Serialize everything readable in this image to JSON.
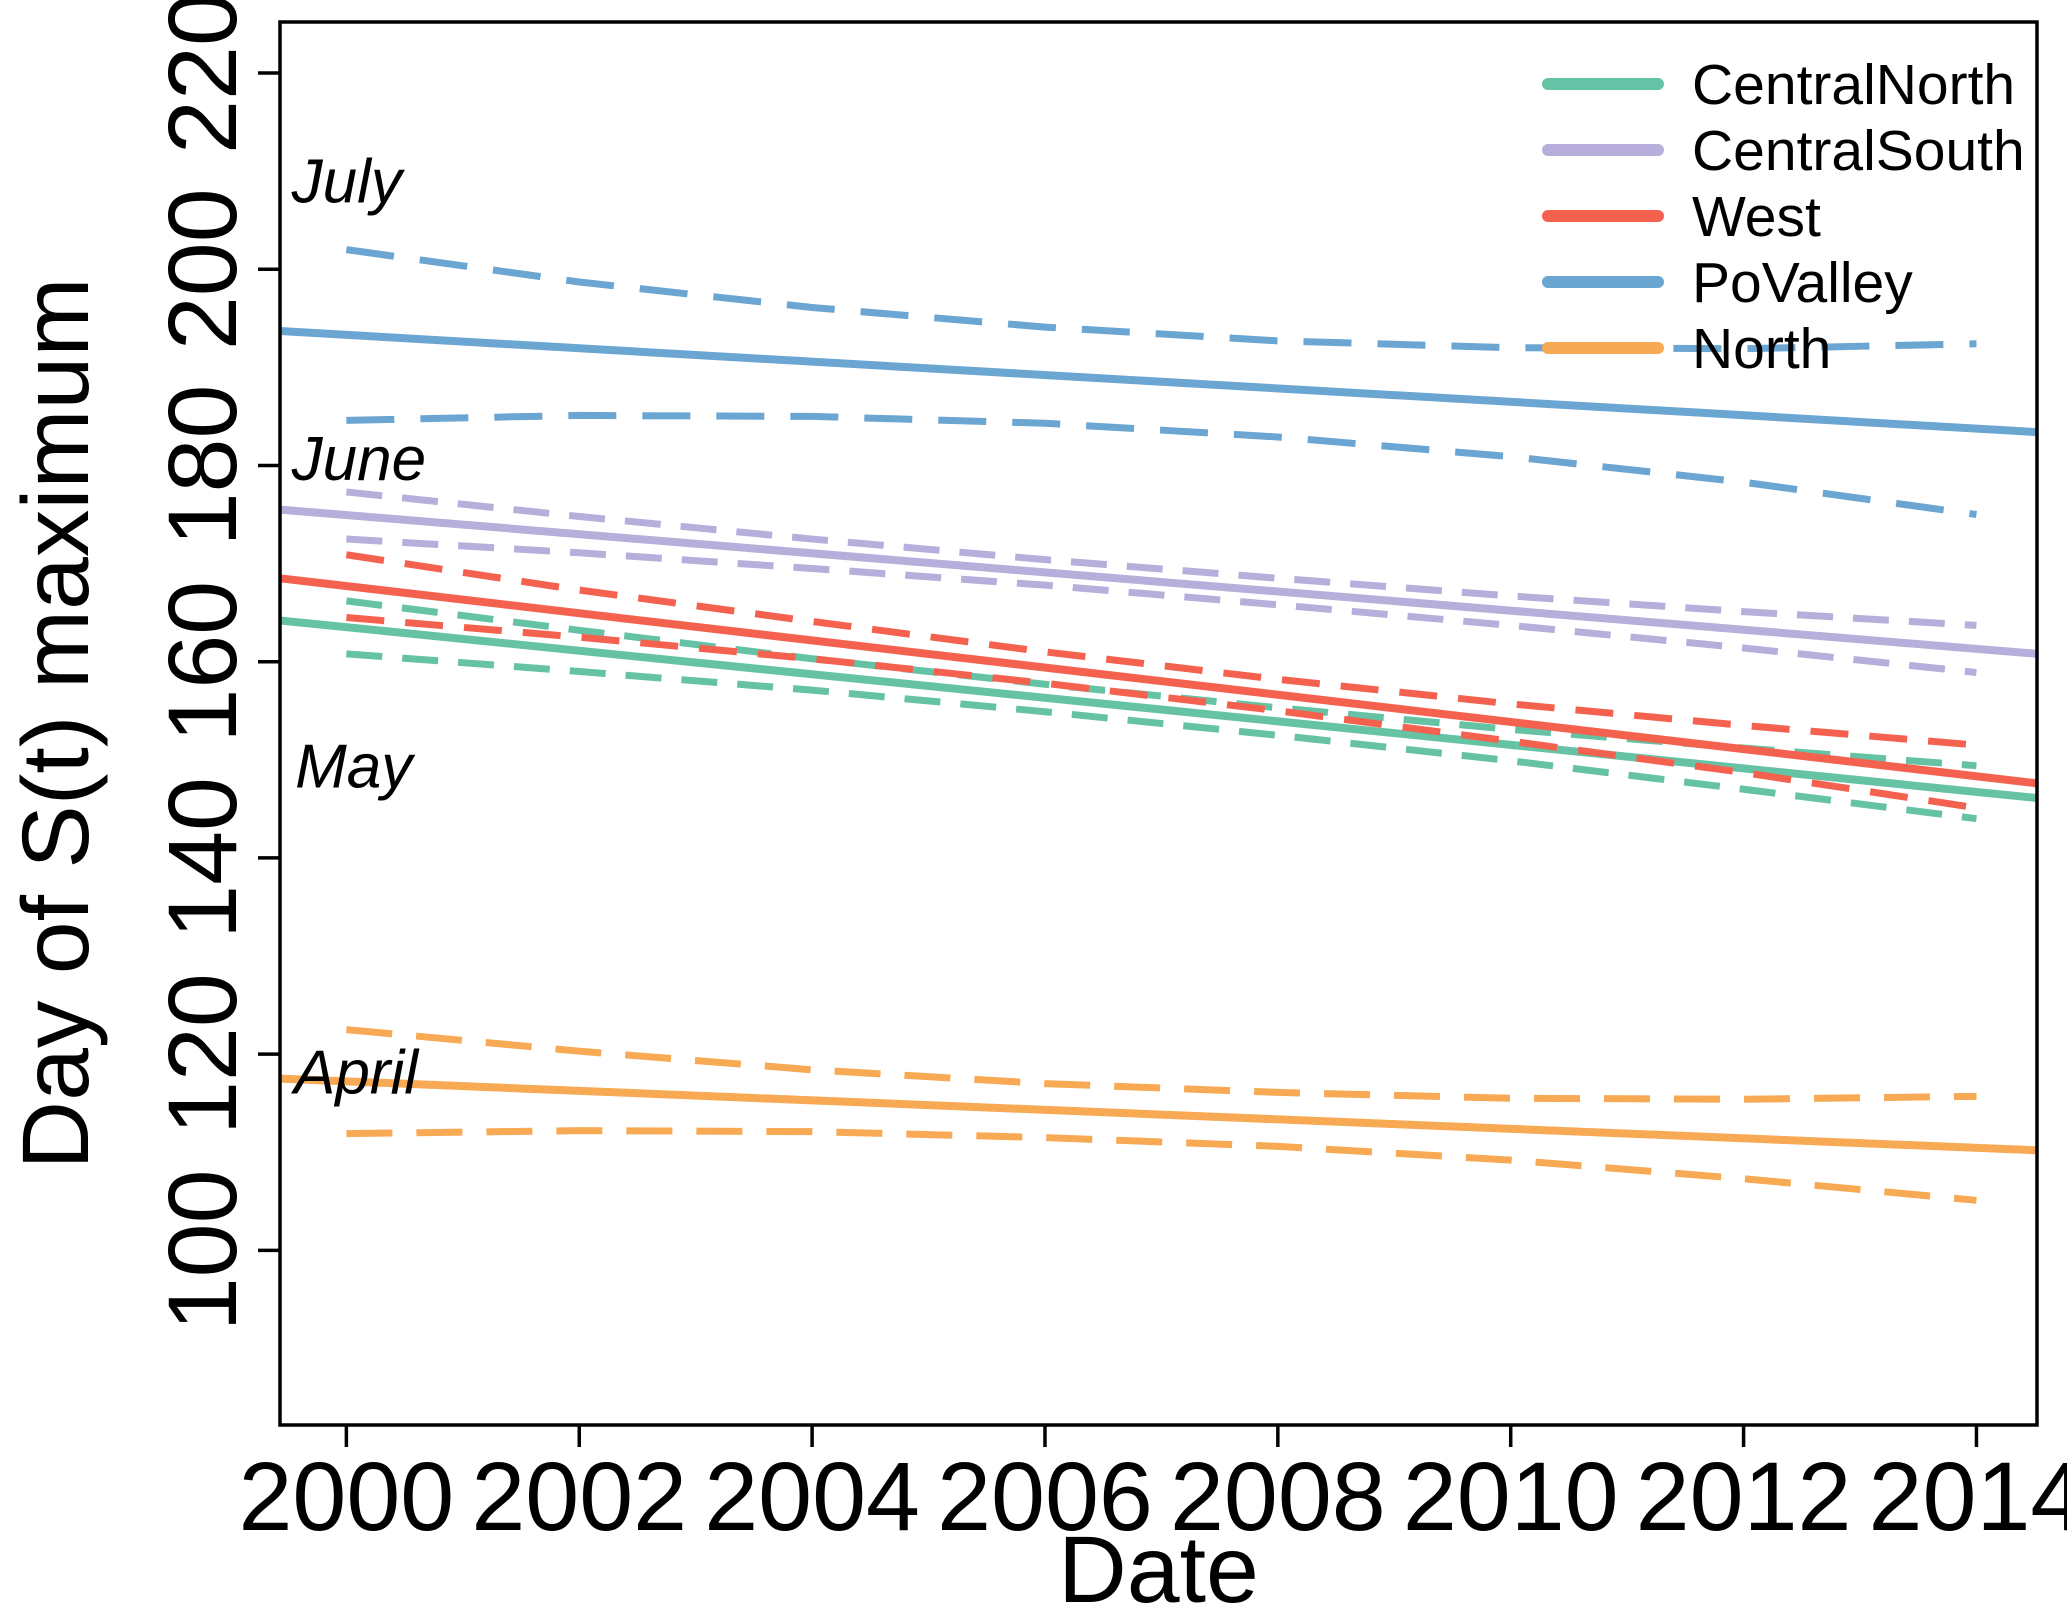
{
  "chart_data": {
    "type": "line",
    "title": "",
    "xlabel": "Date",
    "ylabel": "Day of S(t) maximum",
    "xlim": [
      1999.43,
      2014.52
    ],
    "ylim": [
      82.2,
      225.2
    ],
    "x_ticks": [
      2000,
      2002,
      2004,
      2006,
      2008,
      2010,
      2012,
      2014
    ],
    "y_ticks": [
      100,
      120,
      140,
      160,
      180,
      200,
      220
    ],
    "grid": false,
    "legend_position": "top-right",
    "axis_color": "#000000",
    "annotations": [
      {
        "label": "July",
        "x": 1999.53,
        "y": 206.8,
        "style": "italic"
      },
      {
        "label": "June",
        "x": 1999.53,
        "y": 178.5,
        "style": "italic"
      },
      {
        "label": "May",
        "x": 1999.56,
        "y": 147.2,
        "style": "italic"
      },
      {
        "label": "April",
        "x": 1999.55,
        "y": 116.0,
        "style": "italic"
      }
    ],
    "ci_years": [
      2000,
      2002,
      2004,
      2006,
      2008,
      2010,
      2012,
      2014
    ],
    "series": [
      {
        "name": "CentralNorth",
        "color": "#66C2A5",
        "trend_x": [
          1999.43,
          2014.52
        ],
        "trend_y": [
          164.2,
          146.1
        ],
        "ci_upper": [
          166.2,
          163.2,
          160.3,
          157.7,
          155.3,
          153.1,
          151.2,
          149.4
        ],
        "ci_lower": [
          160.8,
          159.0,
          157.1,
          154.9,
          152.5,
          149.9,
          147.0,
          144.0
        ],
        "dash": "36 20"
      },
      {
        "name": "CentralSouth",
        "color": "#B7AEDB",
        "trend_x": [
          1999.43,
          2014.52
        ],
        "trend_y": [
          175.5,
          160.8
        ],
        "ci_upper": [
          177.3,
          174.8,
          172.5,
          170.4,
          168.5,
          166.7,
          165.1,
          163.7
        ],
        "ci_lower": [
          172.5,
          171.1,
          169.5,
          167.8,
          165.8,
          163.7,
          161.4,
          158.9
        ],
        "dash": "36 20"
      },
      {
        "name": "West",
        "color": "#F4624F",
        "trend_x": [
          1999.43,
          2014.52
        ],
        "trend_y": [
          168.5,
          147.6
        ],
        "ci_upper": [
          170.9,
          167.3,
          164.1,
          161.0,
          158.2,
          155.7,
          153.5,
          151.5
        ],
        "ci_lower": [
          164.5,
          162.5,
          160.3,
          157.8,
          155.0,
          151.9,
          148.7,
          145.1
        ],
        "dash": "38 21"
      },
      {
        "name": "PoValley",
        "color": "#6BA5D2",
        "trend_x": [
          1999.43,
          2014.52
        ],
        "trend_y": [
          193.7,
          183.4
        ],
        "ci_upper": [
          202.0,
          198.7,
          196.1,
          194.1,
          192.7,
          192.0,
          191.9,
          192.4
        ],
        "ci_lower": [
          184.6,
          185.1,
          185.0,
          184.3,
          182.9,
          180.9,
          178.3,
          175.0
        ],
        "dash": "48 26"
      },
      {
        "name": "North",
        "color": "#F8A954",
        "trend_x": [
          1999.43,
          2014.52
        ],
        "trend_y": [
          117.5,
          110.2
        ],
        "ci_upper": [
          122.5,
          120.3,
          118.4,
          117.0,
          116.1,
          115.5,
          115.4,
          115.7
        ],
        "ci_lower": [
          111.9,
          112.2,
          112.1,
          111.5,
          110.6,
          109.2,
          107.3,
          105.1
        ],
        "dash": "46 24"
      }
    ]
  },
  "legend": {
    "entries": [
      "CentralNorth",
      "CentralSouth",
      "West",
      "PoValley",
      "North"
    ]
  }
}
